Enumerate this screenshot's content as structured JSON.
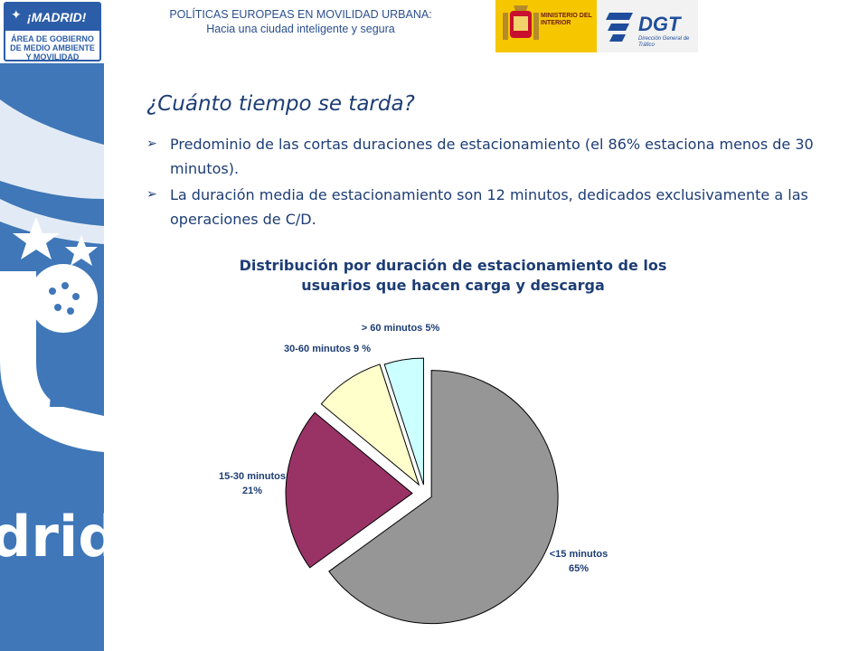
{
  "header": {
    "line1": "POLÍTICAS EUROPEAS EN MOVILIDAD URBANA:",
    "line2": "Hacia una ciudad inteligente y segura"
  },
  "logos": {
    "madrid_name": "¡MADRID!",
    "madrid_area": "ÁREA DE GOBIERNO DE MEDIO AMBIENTE Y MOVILIDAD",
    "ministry": "MINISTERIO DEL INTERIOR",
    "dgt_name": "DGT",
    "dgt_sub": "Dirección General de Tráfico"
  },
  "slide": {
    "title": "¿Cuánto tiempo se tarda?",
    "bullets": [
      "Predominio de las cortas duraciones de estacionamiento (el 86% estaciona menos de 30 minutos).",
      "La duración media de estacionamiento son 12 minutos, dedicados exclusivamente a las operaciones de C/D."
    ]
  },
  "chart_data": {
    "type": "pie",
    "title": "Distribución por duración de estacionamiento de los usuarios que hacen carga y descarga",
    "slices": [
      {
        "label_line1": "<15 minutos",
        "label_line2": "65%",
        "value": 65,
        "color": "#969696"
      },
      {
        "label_line1": "15-30 minutos",
        "label_line2": "21%",
        "value": 21,
        "color": "#993366"
      },
      {
        "label_line1": "30-60 minutos 9 %",
        "label_line2": "",
        "value": 9,
        "color": "#ffffcc"
      },
      {
        "label_line1": "> 60 minutos 5%",
        "label_line2": "",
        "value": 5,
        "color": "#ccffff"
      }
    ]
  }
}
